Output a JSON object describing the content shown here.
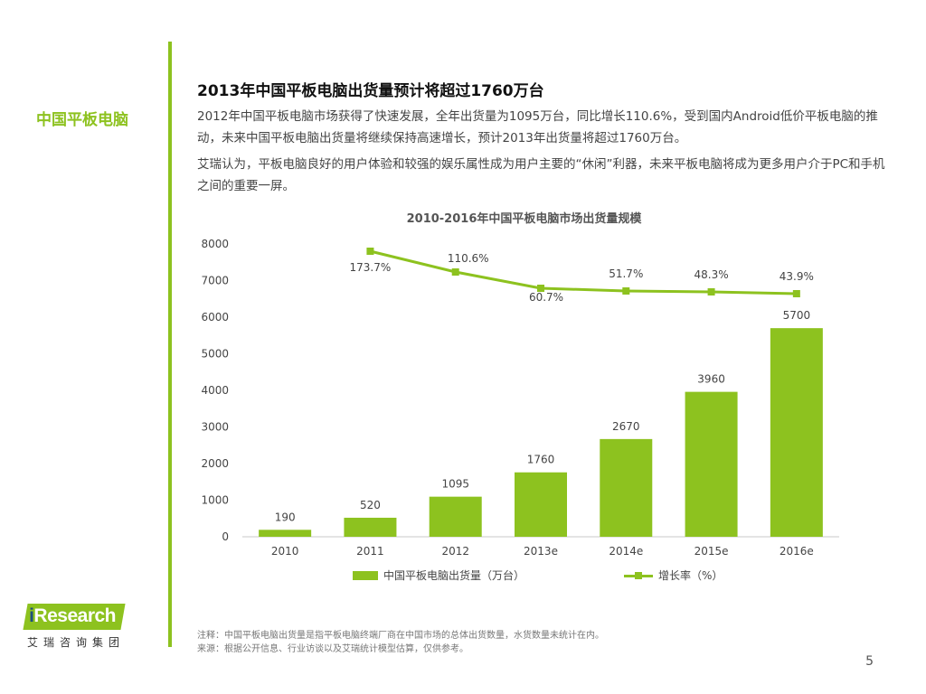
{
  "section_label": "中国平板电脑",
  "headline": "2013年中国平板电脑出货量预计将超过1760万台",
  "paragraphs": [
    "2012年中国平板电脑市场获得了快速发展，全年出货量为1095万台，同比增长110.6%，受到国内Android低价平板电脑的推动，未来中国平板电脑出货量将继续保持高速增长，预计2013年出货量将超过1760万台。",
    "艾瑞认为，平板电脑良好的用户体验和较强的娱乐属性成为用户主要的“休闲”利器，未来平板电脑将成为更多用户介于PC和手机之间的重要一屏。"
  ],
  "chart_data": {
    "type": "bar",
    "title": "2010-2016年中国平板电脑市场出货量规模",
    "categories": [
      "2010",
      "2011",
      "2012",
      "2013e",
      "2014e",
      "2015e",
      "2016e"
    ],
    "series": [
      {
        "name": "中国平板电脑出货量（万台）",
        "type": "bar",
        "values": [
          190,
          520,
          1095,
          1760,
          2670,
          3960,
          5700
        ]
      },
      {
        "name": "增长率（%）",
        "type": "line",
        "values": [
          null,
          173.7,
          110.6,
          60.7,
          51.7,
          48.3,
          43.9
        ],
        "labels": [
          "",
          "173.7%",
          "110.6%",
          "60.7%",
          "51.7%",
          "48.3%",
          "43.9%"
        ]
      }
    ],
    "y_ticks": [
      "0",
      "1000",
      "2000",
      "3000",
      "4000",
      "5000",
      "6000",
      "7000",
      "8000"
    ],
    "ylim": [
      0,
      8000
    ],
    "legend_position": "bottom",
    "grid": false,
    "colors": {
      "bar": "#8dc21f",
      "line": "#8dc21f"
    }
  },
  "footnotes": [
    "注释：中国平板电脑出货量是指平板电脑终端厂商在中国市场的总体出货数量，水货数量未统计在内。",
    "来源：根据公开信息、行业访谈以及艾瑞统计模型估算，仅供参考。"
  ],
  "logo": {
    "prefix": "i",
    "name": "Research",
    "subtitle": "艾瑞咨询集团"
  },
  "page_number": "5",
  "colors": {
    "accent": "#8dc21f",
    "logo_i": "#1d4e7e"
  }
}
